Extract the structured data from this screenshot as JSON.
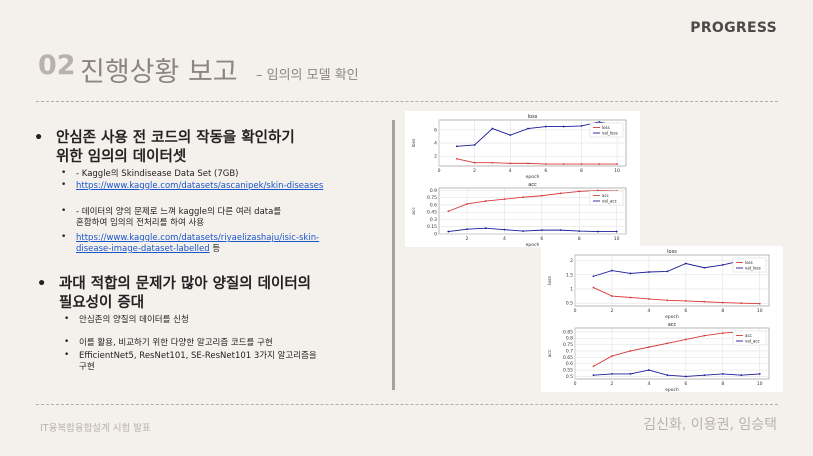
{
  "header": {
    "progress_label": "PROGRESS",
    "number": "02",
    "title": "진행상황 보고",
    "subtitle": "– 임의의 모델 확인"
  },
  "section1": {
    "bullet": "•",
    "title_line1": "안심존 사용 전 코드의 작동을 확인하기",
    "title_line2": "위한 임의의 데이터셋",
    "items": [
      {
        "bullet": "•",
        "text": "- Kaggle의 Skindisease Data Set (7GB)"
      },
      {
        "bullet": "•",
        "text": "https://www.kaggle.com/datasets/ascanipek/skin-diseases"
      },
      {
        "bullet": "•",
        "line1": "- 데이터의 양의 문제로 느껴 kaggle의 다른 여러 data를",
        "line2": "혼합하여 임의의 전처리를 하여 사용"
      },
      {
        "bullet": "•",
        "line1": "https://www.kaggle.com/datasets/riyaelizashaju/isic-skin-",
        "line2": "disease-image-dataset-labelled",
        "suffix": " 등"
      }
    ]
  },
  "section2": {
    "bullet": "•",
    "title_line1": "과대 적합의 문제가 많아 양질의 데이터의",
    "title_line2": "필요성이 증대",
    "items": [
      {
        "bullet": "•",
        "text": "안심존의 양질의 데이터를 신청"
      },
      {
        "bullet": "•",
        "text": "이를 활용, 비교하기 위한 다양한 알고리즘 코드를 구현"
      },
      {
        "bullet": "•",
        "line1": "EfficientNet5, ResNet101, SE-ResNet101 3가지 알고리즘을",
        "line2": "구현"
      }
    ]
  },
  "footer": {
    "left": "IT융복합융합설계 시험 발표",
    "right": "김신화, 이용권, 임승택"
  },
  "colors": {
    "train": "#d73a3a",
    "val": "#1c1c9a"
  },
  "chart_data": [
    {
      "type": "line",
      "title": "loss",
      "xlabel": "epoch",
      "ylabel": "loss",
      "x": [
        1,
        2,
        3,
        4,
        5,
        6,
        7,
        8,
        9,
        10
      ],
      "xticks": [
        0,
        2,
        4,
        6,
        8,
        10
      ],
      "yticks": [
        2,
        4,
        6
      ],
      "xlim": [
        0,
        10.5
      ],
      "ylim": [
        0.5,
        7.5
      ],
      "legend": "top-right",
      "series": [
        {
          "name": "loss",
          "values": [
            1.6,
            1.0,
            1.0,
            0.9,
            0.9,
            0.8,
            0.8,
            0.8,
            0.8,
            0.8
          ]
        },
        {
          "name": "val_loss",
          "values": [
            3.5,
            3.7,
            6.2,
            5.2,
            6.2,
            6.5,
            6.5,
            6.6,
            7.2,
            6.6
          ]
        }
      ]
    },
    {
      "type": "line",
      "title": "acc",
      "xlabel": "epoch",
      "ylabel": "acc",
      "x": [
        1,
        2,
        3,
        4,
        5,
        6,
        7,
        8,
        9,
        10
      ],
      "xticks": [
        2,
        4,
        6,
        8,
        10
      ],
      "yticks": [
        0.0,
        0.15,
        0.3,
        0.45,
        0.6,
        0.75,
        0.9
      ],
      "xlim": [
        0.5,
        10.5
      ],
      "ylim": [
        0,
        0.95
      ],
      "legend": "top-right",
      "series": [
        {
          "name": "acc",
          "values": [
            0.47,
            0.62,
            0.68,
            0.72,
            0.76,
            0.79,
            0.84,
            0.88,
            0.9,
            0.89
          ]
        },
        {
          "name": "val_acc",
          "values": [
            0.05,
            0.1,
            0.12,
            0.09,
            0.06,
            0.08,
            0.08,
            0.06,
            0.05,
            0.05
          ]
        }
      ]
    },
    {
      "type": "line",
      "title": "loss",
      "xlabel": "epoch",
      "ylabel": "loss",
      "x": [
        1,
        2,
        3,
        4,
        5,
        6,
        7,
        8,
        9,
        10
      ],
      "xticks": [
        0,
        2,
        4,
        6,
        8,
        10
      ],
      "yticks": [
        0.5,
        1.0,
        1.5,
        2.0
      ],
      "xlim": [
        0,
        10.5
      ],
      "ylim": [
        0.4,
        2.2
      ],
      "legend": "top-right",
      "series": [
        {
          "name": "loss",
          "values": [
            1.05,
            0.75,
            0.7,
            0.65,
            0.6,
            0.58,
            0.55,
            0.52,
            0.5,
            0.48
          ]
        },
        {
          "name": "val_loss",
          "values": [
            1.45,
            1.65,
            1.55,
            1.6,
            1.62,
            1.9,
            1.75,
            1.85,
            2.0,
            1.95
          ]
        }
      ]
    },
    {
      "type": "line",
      "title": "acc",
      "xlabel": "epoch",
      "ylabel": "acc",
      "x": [
        1,
        2,
        3,
        4,
        5,
        6,
        7,
        8,
        9,
        10
      ],
      "xticks": [
        0,
        2,
        4,
        6,
        8,
        10
      ],
      "yticks": [
        0.5,
        0.55,
        0.6,
        0.65,
        0.7,
        0.75,
        0.8,
        0.85
      ],
      "xlim": [
        0,
        10.5
      ],
      "ylim": [
        0.48,
        0.88
      ],
      "legend": "top-right",
      "series": [
        {
          "name": "acc",
          "values": [
            0.58,
            0.66,
            0.7,
            0.73,
            0.76,
            0.79,
            0.82,
            0.84,
            0.85,
            0.85
          ]
        },
        {
          "name": "val_acc",
          "values": [
            0.51,
            0.52,
            0.52,
            0.55,
            0.51,
            0.5,
            0.51,
            0.52,
            0.51,
            0.52
          ]
        }
      ]
    }
  ]
}
